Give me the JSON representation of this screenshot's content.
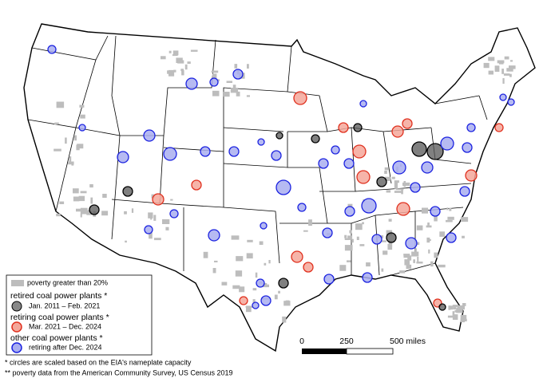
{
  "legend": {
    "poverty": "poverty greater than 20%",
    "retired_title": "retired coal power plants *",
    "retired_period": "Jan. 2011 – Feb. 2021",
    "retiring_title": "retiring coal power plants *",
    "retiring_period": "Mar. 2021 – Dec. 2024",
    "other_title": "other coal power plants *",
    "other_period": "retiring after Dec. 2024"
  },
  "scale_bar": {
    "labels": [
      "0",
      "250",
      "500 miles"
    ]
  },
  "footnotes": [
    "* circles are scaled based on the EIA's nameplate capacity",
    "** poverty data from the American Community Survey, US Census 2019"
  ]
}
